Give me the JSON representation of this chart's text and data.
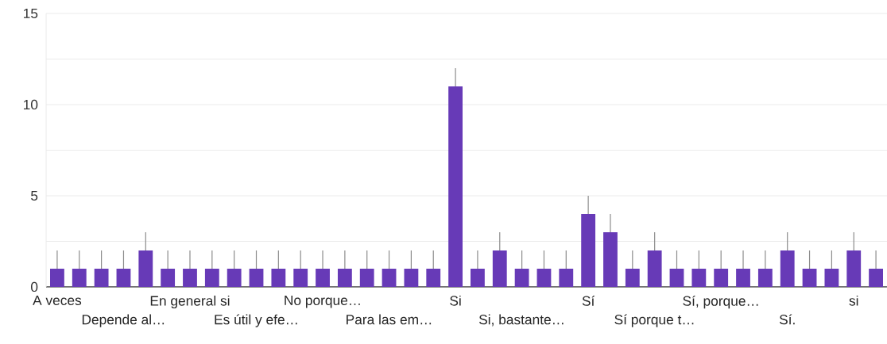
{
  "chart_data": {
    "type": "bar",
    "categories": [
      "A veces",
      null,
      null,
      "Depende al…",
      null,
      null,
      "En general si",
      null,
      null,
      "Es útil y efe…",
      null,
      null,
      "No porque…",
      null,
      null,
      "Para las em…",
      null,
      null,
      "Si",
      null,
      null,
      "Si, bastante…",
      null,
      null,
      "Sí",
      null,
      null,
      "Sí porque t…",
      null,
      null,
      "Sí, porque…",
      null,
      null,
      "Sí.",
      null,
      null,
      "si",
      null
    ],
    "values": [
      1,
      1,
      1,
      1,
      2,
      1,
      1,
      1,
      1,
      1,
      1,
      1,
      1,
      1,
      1,
      1,
      1,
      1,
      11,
      1,
      2,
      1,
      1,
      1,
      4,
      3,
      1,
      2,
      1,
      1,
      1,
      1,
      1,
      2,
      1,
      1,
      2,
      1
    ],
    "errors": [
      [
        1,
        2
      ],
      [
        1,
        2
      ],
      [
        1,
        2
      ],
      [
        1,
        2
      ],
      [
        2,
        3
      ],
      [
        1,
        2
      ],
      [
        1,
        2
      ],
      [
        1,
        2
      ],
      [
        1,
        2
      ],
      [
        1,
        2
      ],
      [
        1,
        2
      ],
      [
        1,
        2
      ],
      [
        1,
        2
      ],
      [
        1,
        2
      ],
      [
        1,
        2
      ],
      [
        1,
        2
      ],
      [
        1,
        2
      ],
      [
        1,
        2
      ],
      [
        11,
        12
      ],
      [
        1,
        2
      ],
      [
        2,
        3
      ],
      [
        1,
        2
      ],
      [
        1,
        2
      ],
      [
        1,
        2
      ],
      [
        4,
        5
      ],
      [
        3,
        4
      ],
      [
        1,
        2
      ],
      [
        2,
        3
      ],
      [
        1,
        2
      ],
      [
        1,
        2
      ],
      [
        1,
        2
      ],
      [
        1,
        2
      ],
      [
        1,
        2
      ],
      [
        2,
        3
      ],
      [
        1,
        2
      ],
      [
        1,
        2
      ],
      [
        2,
        3
      ],
      [
        1,
        2
      ]
    ],
    "color": "#673ab7",
    "ylim": [
      0,
      15
    ],
    "yticks": [
      0,
      {
        "value": 2.5,
        "label": null
      },
      5,
      {
        "value": 7.5,
        "label": null
      },
      10,
      {
        "value": 12.5,
        "label": null
      },
      15
    ],
    "grid": "y"
  }
}
